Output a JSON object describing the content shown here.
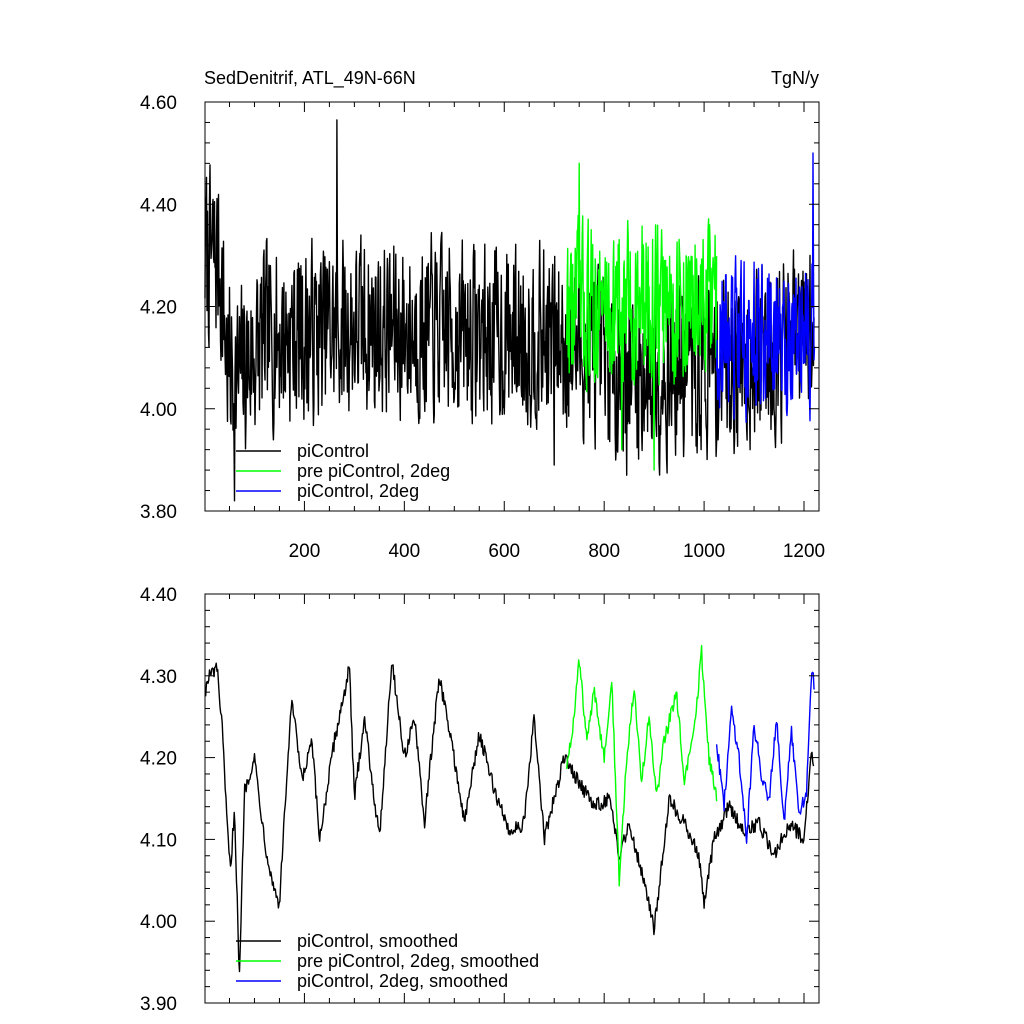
{
  "chart_data": [
    {
      "type": "line",
      "title": "SedDenitrif, ATL_49N-66N",
      "units": "TgN/y",
      "xlabel": "",
      "ylabel": "",
      "xlim": [
        1,
        1230
      ],
      "ylim": [
        3.8,
        4.6
      ],
      "xticks": [
        200,
        400,
        600,
        800,
        1000,
        1200
      ],
      "xtick_labels": [
        "200",
        "400",
        "600",
        "800",
        "1000",
        "1200"
      ],
      "yticks": [
        3.8,
        4.0,
        4.2,
        4.4,
        4.6
      ],
      "ytick_labels": [
        "3.80",
        "4.00",
        "4.20",
        "4.40",
        "4.60"
      ],
      "grid": false,
      "legend_position": "bottom-left",
      "series": [
        {
          "name": "piControl",
          "color": "#000000",
          "x_range": [
            1,
            1220
          ],
          "base": 4.14,
          "segments": [
            [
              1,
              4.3
            ],
            [
              30,
              4.29
            ],
            [
              45,
              4.1
            ],
            [
              60,
              4.05
            ],
            [
              120,
              4.14
            ],
            [
              300,
              4.16
            ],
            [
              500,
              4.15
            ],
            [
              700,
              4.14
            ],
            [
              850,
              4.07
            ],
            [
              1000,
              4.08
            ],
            [
              1220,
              4.14
            ]
          ],
          "amplitude": 0.28,
          "extremes": [
            [
              265,
              4.565
            ],
            [
              60,
              3.82
            ],
            [
              845,
              3.87
            ],
            [
              700,
              3.89
            ]
          ]
        },
        {
          "name": "pre piControl, 2deg",
          "color": "#00ff00",
          "x_range": [
            725,
            1025
          ],
          "base": 4.2,
          "amplitude": 0.26,
          "extremes": [
            [
              750,
              4.48
            ],
            [
              900,
              3.88
            ],
            [
              835,
              3.92
            ]
          ]
        },
        {
          "name": "piControl, 2deg",
          "color": "#0000ff",
          "x_range": [
            1025,
            1222
          ],
          "base": 4.14,
          "amplitude": 0.24,
          "extremes": [
            [
              1218,
              4.5
            ],
            [
              1060,
              3.98
            ]
          ]
        }
      ]
    },
    {
      "type": "line",
      "title": "",
      "xlabel": "",
      "ylabel": "",
      "xlim": [
        1,
        1230
      ],
      "ylim": [
        3.9,
        4.4
      ],
      "xticks": [
        200,
        400,
        600,
        800,
        1000,
        1200
      ],
      "yticks": [
        3.9,
        4.0,
        4.1,
        4.2,
        4.3,
        4.4
      ],
      "ytick_labels": [
        "3.90",
        "4.00",
        "4.10",
        "4.20",
        "4.30",
        "4.40"
      ],
      "grid": false,
      "legend_position": "bottom-left",
      "series": [
        {
          "name": "piControl, smoothed",
          "color": "#000000",
          "x_range": [
            1,
            1220
          ],
          "points": [
            [
              1,
              4.28
            ],
            [
              10,
              4.3
            ],
            [
              25,
              4.31
            ],
            [
              35,
              4.24
            ],
            [
              45,
              4.12
            ],
            [
              52,
              4.06
            ],
            [
              60,
              4.14
            ],
            [
              70,
              3.93
            ],
            [
              80,
              4.16
            ],
            [
              100,
              4.2
            ],
            [
              120,
              4.1
            ],
            [
              135,
              4.05
            ],
            [
              150,
              4.02
            ],
            [
              165,
              4.18
            ],
            [
              175,
              4.27
            ],
            [
              195,
              4.17
            ],
            [
              215,
              4.22
            ],
            [
              230,
              4.1
            ],
            [
              260,
              4.22
            ],
            [
              290,
              4.31
            ],
            [
              300,
              4.15
            ],
            [
              320,
              4.25
            ],
            [
              350,
              4.1
            ],
            [
              375,
              4.32
            ],
            [
              400,
              4.2
            ],
            [
              420,
              4.25
            ],
            [
              440,
              4.12
            ],
            [
              470,
              4.3
            ],
            [
              500,
              4.2
            ],
            [
              520,
              4.12
            ],
            [
              550,
              4.23
            ],
            [
              580,
              4.16
            ],
            [
              610,
              4.11
            ],
            [
              640,
              4.12
            ],
            [
              660,
              4.25
            ],
            [
              680,
              4.1
            ],
            [
              700,
              4.15
            ],
            [
              720,
              4.2
            ],
            [
              740,
              4.18
            ],
            [
              780,
              4.14
            ],
            [
              810,
              4.15
            ],
            [
              830,
              4.08
            ],
            [
              850,
              4.12
            ],
            [
              880,
              4.05
            ],
            [
              900,
              3.99
            ],
            [
              930,
              4.15
            ],
            [
              960,
              4.12
            ],
            [
              990,
              4.08
            ],
            [
              1000,
              4.02
            ],
            [
              1020,
              4.1
            ],
            [
              1050,
              4.14
            ],
            [
              1080,
              4.11
            ],
            [
              1110,
              4.12
            ],
            [
              1140,
              4.08
            ],
            [
              1170,
              4.12
            ],
            [
              1200,
              4.1
            ],
            [
              1215,
              4.21
            ],
            [
              1220,
              4.19
            ]
          ]
        },
        {
          "name": "pre piControl, 2deg, smoothed",
          "color": "#00ff00",
          "x_range": [
            725,
            1025
          ],
          "points": [
            [
              725,
              4.19
            ],
            [
              740,
              4.25
            ],
            [
              750,
              4.32
            ],
            [
              765,
              4.22
            ],
            [
              780,
              4.28
            ],
            [
              800,
              4.2
            ],
            [
              815,
              4.3
            ],
            [
              830,
              4.05
            ],
            [
              845,
              4.2
            ],
            [
              860,
              4.29
            ],
            [
              875,
              4.17
            ],
            [
              890,
              4.25
            ],
            [
              905,
              4.15
            ],
            [
              920,
              4.22
            ],
            [
              945,
              4.28
            ],
            [
              960,
              4.17
            ],
            [
              980,
              4.23
            ],
            [
              995,
              4.33
            ],
            [
              1010,
              4.2
            ],
            [
              1025,
              4.15
            ]
          ]
        },
        {
          "name": "piControl, 2deg, smoothed",
          "color": "#0000ff",
          "x_range": [
            1025,
            1222
          ],
          "points": [
            [
              1025,
              4.22
            ],
            [
              1040,
              4.14
            ],
            [
              1055,
              4.26
            ],
            [
              1070,
              4.2
            ],
            [
              1085,
              4.1
            ],
            [
              1100,
              4.24
            ],
            [
              1115,
              4.18
            ],
            [
              1130,
              4.15
            ],
            [
              1145,
              4.25
            ],
            [
              1160,
              4.12
            ],
            [
              1175,
              4.23
            ],
            [
              1190,
              4.13
            ],
            [
              1205,
              4.16
            ],
            [
              1215,
              4.3
            ],
            [
              1222,
              4.29
            ]
          ]
        }
      ]
    }
  ]
}
